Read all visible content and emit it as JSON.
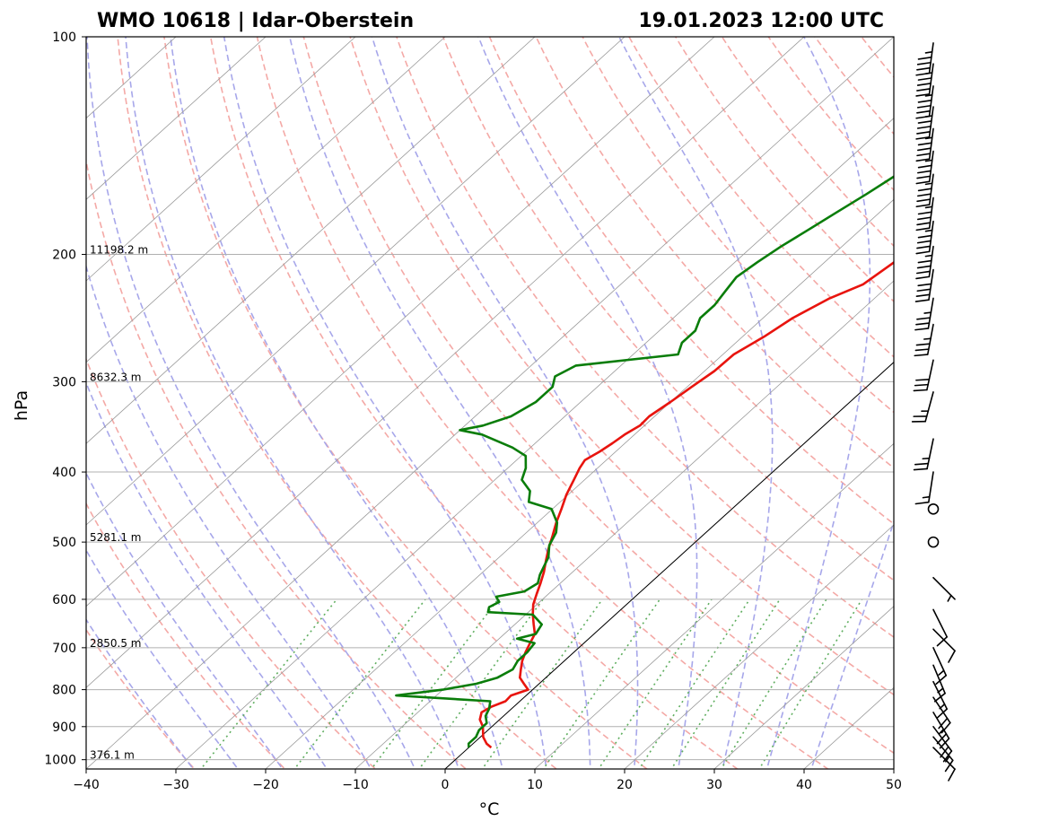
{
  "header": {
    "station": "WMO 10618 | Idar-Oberstein",
    "datetime": "19.01.2023 12:00 UTC"
  },
  "chart_data": {
    "type": "skew-t",
    "xlabel": "°C",
    "ylabel": "hPa",
    "xlim": [
      -40,
      50
    ],
    "ylim": [
      1030,
      100
    ],
    "log_y": true,
    "grid": true,
    "x_ticks": [
      "−40",
      "−30",
      "−20",
      "−10",
      "0",
      "10",
      "20",
      "30",
      "40",
      "50"
    ],
    "y_ticks": [
      {
        "p": 100,
        "label": "100"
      },
      {
        "p": 200,
        "label": "200"
      },
      {
        "p": 300,
        "label": "300"
      },
      {
        "p": 400,
        "label": "400"
      },
      {
        "p": 500,
        "label": "500"
      },
      {
        "p": 600,
        "label": "600"
      },
      {
        "p": 700,
        "label": "700"
      },
      {
        "p": 800,
        "label": "800"
      },
      {
        "p": 900,
        "label": "900"
      },
      {
        "p": 1000,
        "label": "1000"
      }
    ],
    "height_labels": [
      {
        "p": 200,
        "label": "11198.2 m"
      },
      {
        "p": 300,
        "label": "8632.3 m"
      },
      {
        "p": 500,
        "label": "5281.1 m"
      },
      {
        "p": 700,
        "label": "2850.5 m"
      },
      {
        "p": 1000,
        "label": "376.1 m"
      }
    ],
    "series": [
      {
        "color": "#e8140e",
        "points": [
          [
            962,
            2.5
          ],
          [
            950,
            1.5
          ],
          [
            930,
            0.3
          ],
          [
            900,
            -1.0
          ],
          [
            880,
            -2.2
          ],
          [
            860,
            -2.9
          ],
          [
            845,
            -2.5
          ],
          [
            830,
            -1.6
          ],
          [
            815,
            -1.7
          ],
          [
            800,
            -0.5
          ],
          [
            785,
            -1.7
          ],
          [
            770,
            -2.9
          ],
          [
            750,
            -3.8
          ],
          [
            730,
            -4.7
          ],
          [
            710,
            -5.4
          ],
          [
            690,
            -6.0
          ],
          [
            670,
            -6.6
          ],
          [
            650,
            -7.9
          ],
          [
            630,
            -9.2
          ],
          [
            610,
            -10.4
          ],
          [
            590,
            -11.3
          ],
          [
            570,
            -12.2
          ],
          [
            550,
            -13.2
          ],
          [
            530,
            -14.4
          ],
          [
            510,
            -15.6
          ],
          [
            490,
            -16.7
          ],
          [
            470,
            -17.9
          ],
          [
            450,
            -19.0
          ],
          [
            430,
            -20.2
          ],
          [
            410,
            -21.2
          ],
          [
            395,
            -22.0
          ],
          [
            385,
            -22.4
          ],
          [
            375,
            -21.8
          ],
          [
            365,
            -21.4
          ],
          [
            355,
            -21.1
          ],
          [
            345,
            -20.5
          ],
          [
            335,
            -20.6
          ],
          [
            320,
            -20.0
          ],
          [
            305,
            -19.5
          ],
          [
            290,
            -18.9
          ],
          [
            275,
            -18.8
          ],
          [
            260,
            -17.6
          ],
          [
            245,
            -16.7
          ],
          [
            230,
            -15.0
          ],
          [
            220,
            -13.0
          ],
          [
            210,
            -12.5
          ],
          [
            200,
            -12.0
          ],
          [
            190,
            -11.2
          ],
          [
            180,
            -10.2
          ],
          [
            170,
            -8.8
          ],
          [
            160,
            -7.5
          ],
          [
            150,
            -6.5
          ],
          [
            140,
            -5.0
          ],
          [
            130,
            -4.4
          ],
          [
            120,
            -3.8
          ],
          [
            110,
            -3.7
          ],
          [
            105,
            -3.0
          ],
          [
            100,
            -3.0
          ]
        ]
      },
      {
        "color": "#0a7d0a",
        "points": [
          [
            962,
            0.0
          ],
          [
            950,
            -0.5
          ],
          [
            930,
            -0.5
          ],
          [
            910,
            -1.0
          ],
          [
            890,
            -1.0
          ],
          [
            870,
            -2.0
          ],
          [
            850,
            -2.5
          ],
          [
            830,
            -3.3
          ],
          [
            815,
            -14.5
          ],
          [
            800,
            -10.0
          ],
          [
            785,
            -7.0
          ],
          [
            770,
            -5.4
          ],
          [
            750,
            -4.7
          ],
          [
            730,
            -5.2
          ],
          [
            710,
            -5.2
          ],
          [
            690,
            -5.5
          ],
          [
            680,
            -8.0
          ],
          [
            670,
            -6.5
          ],
          [
            650,
            -7.0
          ],
          [
            630,
            -9.2
          ],
          [
            625,
            -14.5
          ],
          [
            615,
            -15.0
          ],
          [
            605,
            -14.5
          ],
          [
            595,
            -15.5
          ],
          [
            585,
            -13.0
          ],
          [
            570,
            -12.5
          ],
          [
            555,
            -13.3
          ],
          [
            540,
            -13.9
          ],
          [
            525,
            -14.5
          ],
          [
            505,
            -15.9
          ],
          [
            485,
            -16.7
          ],
          [
            470,
            -17.8
          ],
          [
            450,
            -20.1
          ],
          [
            440,
            -23.5
          ],
          [
            425,
            -24.7
          ],
          [
            410,
            -27.0
          ],
          [
            395,
            -28.0
          ],
          [
            380,
            -29.5
          ],
          [
            370,
            -32.0
          ],
          [
            355,
            -37.0
          ],
          [
            350,
            -40.0
          ],
          [
            345,
            -38.0
          ],
          [
            335,
            -36.0
          ],
          [
            320,
            -35.0
          ],
          [
            305,
            -35.0
          ],
          [
            295,
            -36.0
          ],
          [
            285,
            -35.0
          ],
          [
            275,
            -25.0
          ],
          [
            265,
            -26.0
          ],
          [
            255,
            -26.0
          ],
          [
            245,
            -27.0
          ],
          [
            235,
            -27.0
          ],
          [
            225,
            -27.5
          ],
          [
            215,
            -28.0
          ],
          [
            205,
            -27.5
          ],
          [
            195,
            -26.8
          ],
          [
            185,
            -25.8
          ],
          [
            175,
            -24.8
          ],
          [
            165,
            -23.7
          ],
          [
            155,
            -22.7
          ],
          [
            145,
            -21.6
          ],
          [
            135,
            -19.8
          ],
          [
            125,
            -18.8
          ],
          [
            115,
            -17.0
          ],
          [
            105,
            -15.5
          ],
          [
            100,
            -14.5
          ]
        ]
      }
    ],
    "wind_barbs": [
      {
        "p": 962,
        "u": -8,
        "v": 8
      },
      {
        "p": 930,
        "u": -10,
        "v": 12
      },
      {
        "p": 900,
        "u": -12,
        "v": 16
      },
      {
        "p": 860,
        "u": -12,
        "v": 20
      },
      {
        "p": 820,
        "u": -10,
        "v": 15
      },
      {
        "p": 780,
        "u": -6,
        "v": 12
      },
      {
        "p": 740,
        "u": -5,
        "v": 12
      },
      {
        "p": 700,
        "u": -6,
        "v": 13
      },
      {
        "p": 660,
        "u": -8,
        "v": 8
      },
      {
        "p": 620,
        "u": -4,
        "v": 8
      },
      {
        "p": 560,
        "u": -5,
        "v": 5
      },
      {
        "p": 500,
        "u": 0,
        "v": 0
      },
      {
        "p": 450,
        "u": 0,
        "v": 0
      },
      {
        "p": 400,
        "u": 2,
        "v": 13
      },
      {
        "p": 360,
        "u": 5,
        "v": 24
      },
      {
        "p": 310,
        "u": 7,
        "v": 26
      },
      {
        "p": 280,
        "u": 6,
        "v": 28
      },
      {
        "p": 250,
        "u": 6,
        "v": 32
      },
      {
        "p": 230,
        "u": 6,
        "v": 36
      },
      {
        "p": 210,
        "u": 6,
        "v": 40
      },
      {
        "p": 195,
        "u": 6,
        "v": 44
      },
      {
        "p": 180,
        "u": 6,
        "v": 46
      },
      {
        "p": 167,
        "u": 6,
        "v": 47
      },
      {
        "p": 155,
        "u": 6,
        "v": 47
      },
      {
        "p": 144,
        "u": 6,
        "v": 47
      },
      {
        "p": 134,
        "u": 6,
        "v": 47
      },
      {
        "p": 125,
        "u": 6,
        "v": 45
      },
      {
        "p": 117,
        "u": 6,
        "v": 45
      },
      {
        "p": 109,
        "u": 6,
        "v": 45
      },
      {
        "p": 102,
        "u": 6,
        "v": 45
      }
    ]
  }
}
